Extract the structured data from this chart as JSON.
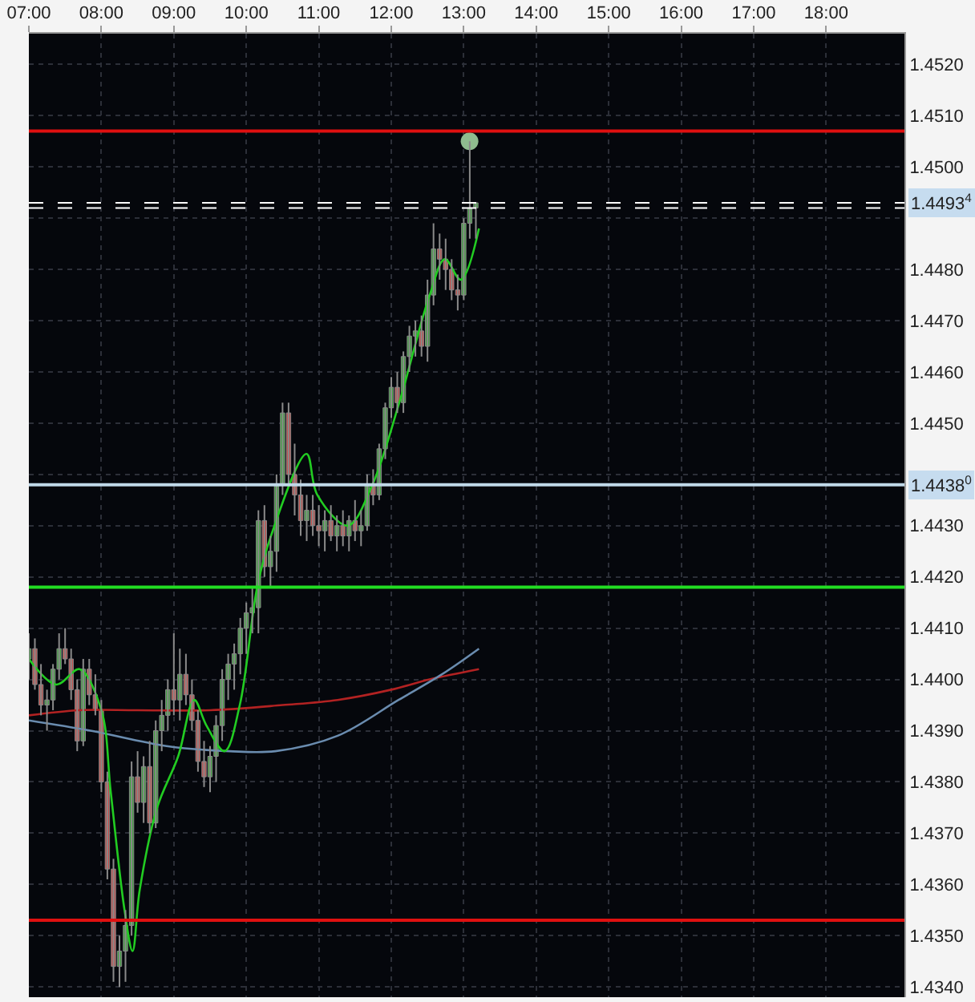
{
  "chart_data": {
    "type": "candlestick",
    "x": [
      7,
      7.083,
      7.167,
      7.25,
      7.333,
      7.417,
      7.5,
      7.583,
      7.667,
      7.75,
      7.833,
      7.917,
      8,
      8.083,
      8.167,
      8.25,
      8.333,
      8.417,
      8.5,
      8.583,
      8.667,
      8.75,
      8.833,
      8.917,
      9,
      9.083,
      9.167,
      9.25,
      9.333,
      9.417,
      9.5,
      9.583,
      9.667,
      9.75,
      9.833,
      9.917,
      10,
      10.083,
      10.167,
      10.25,
      10.333,
      10.417,
      10.5,
      10.583,
      10.667,
      10.75,
      10.833,
      10.917,
      11,
      11.083,
      11.167,
      11.25,
      11.333,
      11.417,
      11.5,
      11.583,
      11.667,
      11.75,
      11.833,
      11.917,
      12,
      12.083,
      12.167,
      12.25,
      12.333,
      12.417,
      12.5,
      12.583,
      12.667,
      12.75,
      12.833,
      12.917,
      13,
      13.083,
      13.167
    ],
    "ohlc": [
      [
        1.4404,
        1.4409,
        1.44,
        1.4406
      ],
      [
        1.4406,
        1.4408,
        1.4398,
        1.4399
      ],
      [
        1.4399,
        1.4403,
        1.4393,
        1.4395
      ],
      [
        1.4395,
        1.4398,
        1.439,
        1.4396
      ],
      [
        1.4396,
        1.4403,
        1.4394,
        1.4402
      ],
      [
        1.4402,
        1.4409,
        1.44,
        1.4406
      ],
      [
        1.4406,
        1.441,
        1.4403,
        1.4404
      ],
      [
        1.4404,
        1.4406,
        1.4396,
        1.4398
      ],
      [
        1.4398,
        1.44,
        1.4386,
        1.4388
      ],
      [
        1.4388,
        1.4404,
        1.4387,
        1.4402
      ],
      [
        1.4402,
        1.4404,
        1.4395,
        1.4397
      ],
      [
        1.4397,
        1.4401,
        1.4393,
        1.4394
      ],
      [
        1.4394,
        1.4396,
        1.4378,
        1.438
      ],
      [
        1.438,
        1.4382,
        1.4361,
        1.4363
      ],
      [
        1.4363,
        1.4365,
        1.4341,
        1.4344
      ],
      [
        1.4344,
        1.435,
        1.434,
        1.4347
      ],
      [
        1.4347,
        1.4355,
        1.4341,
        1.4352
      ],
      [
        1.4352,
        1.4384,
        1.435,
        1.4381
      ],
      [
        1.4381,
        1.4386,
        1.4374,
        1.4376
      ],
      [
        1.4376,
        1.4385,
        1.4372,
        1.4383
      ],
      [
        1.4383,
        1.4388,
        1.437,
        1.4372
      ],
      [
        1.4372,
        1.4392,
        1.4371,
        1.439
      ],
      [
        1.439,
        1.4396,
        1.4386,
        1.4393
      ],
      [
        1.4393,
        1.44,
        1.439,
        1.4398
      ],
      [
        1.4398,
        1.4409,
        1.4393,
        1.4396
      ],
      [
        1.4396,
        1.4406,
        1.4392,
        1.4401
      ],
      [
        1.4401,
        1.4405,
        1.4395,
        1.4397
      ],
      [
        1.4397,
        1.44,
        1.439,
        1.4392
      ],
      [
        1.4392,
        1.4394,
        1.4382,
        1.4384
      ],
      [
        1.4384,
        1.4388,
        1.4379,
        1.4381
      ],
      [
        1.4381,
        1.4387,
        1.4378,
        1.4385
      ],
      [
        1.4385,
        1.4393,
        1.438,
        1.4391
      ],
      [
        1.4391,
        1.4402,
        1.4388,
        1.44
      ],
      [
        1.44,
        1.4405,
        1.4396,
        1.4403
      ],
      [
        1.4403,
        1.4407,
        1.4398,
        1.4405
      ],
      [
        1.4405,
        1.4412,
        1.4401,
        1.441
      ],
      [
        1.441,
        1.4415,
        1.4405,
        1.4413
      ],
      [
        1.4413,
        1.4418,
        1.4409,
        1.4414
      ],
      [
        1.4414,
        1.4433,
        1.4409,
        1.4431
      ],
      [
        1.4431,
        1.4434,
        1.442,
        1.4422
      ],
      [
        1.4422,
        1.4428,
        1.4418,
        1.4425
      ],
      [
        1.4425,
        1.444,
        1.4421,
        1.4438
      ],
      [
        1.4438,
        1.4454,
        1.4436,
        1.4452
      ],
      [
        1.4452,
        1.4454,
        1.4438,
        1.444
      ],
      [
        1.444,
        1.4446,
        1.4432,
        1.4436
      ],
      [
        1.4436,
        1.4439,
        1.4428,
        1.4431
      ],
      [
        1.4431,
        1.4436,
        1.4427,
        1.4433
      ],
      [
        1.4433,
        1.4436,
        1.4428,
        1.443
      ],
      [
        1.443,
        1.4434,
        1.4426,
        1.4429
      ],
      [
        1.4429,
        1.4433,
        1.4425,
        1.4431
      ],
      [
        1.4431,
        1.4434,
        1.4427,
        1.4428
      ],
      [
        1.4428,
        1.4432,
        1.4425,
        1.443
      ],
      [
        1.443,
        1.4433,
        1.4426,
        1.4428
      ],
      [
        1.4428,
        1.4432,
        1.4425,
        1.4431
      ],
      [
        1.4431,
        1.4435,
        1.4427,
        1.4429
      ],
      [
        1.4429,
        1.4433,
        1.4426,
        1.443
      ],
      [
        1.443,
        1.444,
        1.4429,
        1.4438
      ],
      [
        1.4438,
        1.4441,
        1.4434,
        1.4436
      ],
      [
        1.4436,
        1.4446,
        1.4435,
        1.4445
      ],
      [
        1.4445,
        1.4454,
        1.4443,
        1.4453
      ],
      [
        1.4453,
        1.4459,
        1.4451,
        1.4457
      ],
      [
        1.4457,
        1.446,
        1.4452,
        1.4454
      ],
      [
        1.4454,
        1.4464,
        1.4452,
        1.4463
      ],
      [
        1.4463,
        1.4469,
        1.446,
        1.4467
      ],
      [
        1.4467,
        1.447,
        1.4463,
        1.4468
      ],
      [
        1.4468,
        1.4471,
        1.4463,
        1.4465
      ],
      [
        1.4465,
        1.4478,
        1.4462,
        1.4475
      ],
      [
        1.4475,
        1.4489,
        1.4473,
        1.4484
      ],
      [
        1.4484,
        1.4487,
        1.4478,
        1.4482
      ],
      [
        1.4482,
        1.4486,
        1.4476,
        1.448
      ],
      [
        1.448,
        1.4482,
        1.4474,
        1.4476
      ],
      [
        1.4476,
        1.4479,
        1.4472,
        1.4475
      ],
      [
        1.4475,
        1.449,
        1.4474,
        1.4489
      ],
      [
        1.4489,
        1.4505,
        1.4486,
        1.4492
      ],
      [
        1.4492,
        1.4493,
        1.4486,
        1.4493
      ]
    ],
    "colors": [
      "#3f9f3f",
      "#c0504d",
      "#c0504d",
      "#3f9f3f",
      "#3f9f3f",
      "#3f9f3f",
      "#c0504d",
      "#c0504d",
      "#c0504d",
      "#3f9f3f",
      "#c0504d",
      "#c0504d",
      "#c0504d",
      "#c0504d",
      "#c0504d",
      "#3f9f3f",
      "#3f9f3f",
      "#3f9f3f",
      "#c0504d",
      "#3f9f3f",
      "#c0504d",
      "#3f9f3f",
      "#3f9f3f",
      "#3f9f3f",
      "#c0504d",
      "#3f9f3f",
      "#c0504d",
      "#c0504d",
      "#c0504d",
      "#c0504d",
      "#3f9f3f",
      "#3f9f3f",
      "#3f9f3f",
      "#3f9f3f",
      "#3f9f3f",
      "#3f9f3f",
      "#3f9f3f",
      "#3f9f3f",
      "#3f9f3f",
      "#c0504d",
      "#3f9f3f",
      "#3f9f3f",
      "#3f9f3f",
      "#c0504d",
      "#c0504d",
      "#c0504d",
      "#3f9f3f",
      "#c0504d",
      "#c0504d",
      "#3f9f3f",
      "#c0504d",
      "#3f9f3f",
      "#c0504d",
      "#3f9f3f",
      "#c0504d",
      "#3f9f3f",
      "#3f9f3f",
      "#c0504d",
      "#3f9f3f",
      "#3f9f3f",
      "#3f9f3f",
      "#c0504d",
      "#3f9f3f",
      "#3f9f3f",
      "#3f9f3f",
      "#c0504d",
      "#3f9f3f",
      "#3f9f3f",
      "#c0504d",
      "#c0504d",
      "#c0504d",
      "#c0504d",
      "#3f9f3f",
      "#3f9f3f",
      "#3f9f3f"
    ],
    "series": [
      {
        "type": "line",
        "color": "#b22222",
        "x": [
          7,
          7.7,
          8.5,
          9.5,
          10.5,
          11.26,
          12,
          12.53,
          13.21
        ],
        "values": [
          1.4393,
          1.4394,
          1.4394,
          1.4394,
          1.4395,
          1.4396,
          1.4398,
          1.44,
          1.4402
        ]
      },
      {
        "type": "line",
        "color": "#6a8caf",
        "x": [
          7,
          7.85,
          8.9,
          9.77,
          10.4,
          11.26,
          12.1,
          12.7,
          13.21
        ],
        "values": [
          1.4392,
          1.439,
          1.4387,
          1.4386,
          1.4386,
          1.4389,
          1.4396,
          1.4401,
          1.4406
        ]
      },
      {
        "type": "line",
        "color": "#22cc22",
        "x": [
          7,
          7.38,
          7.7,
          8,
          8.13,
          8.32,
          8.43,
          8.53,
          8.77,
          9.06,
          9.28,
          9.45,
          9.7,
          9.91,
          10.15,
          10.34,
          10.83,
          10.98,
          11.4,
          11.74,
          12.11,
          12.53,
          12.74,
          12.96,
          13.21
        ],
        "values": [
          1.4404,
          1.4399,
          1.4402,
          1.4394,
          1.4378,
          1.4355,
          1.4347,
          1.4359,
          1.4375,
          1.4385,
          1.4396,
          1.4391,
          1.4386,
          1.4395,
          1.4418,
          1.4428,
          1.4444,
          1.4436,
          1.443,
          1.4438,
          1.4454,
          1.4475,
          1.4482,
          1.4478,
          1.4488
        ]
      },
      {
        "type": "scatter",
        "color": "#8fbc8f",
        "marker": "circle",
        "x": [
          13.08
        ],
        "values": [
          1.4505
        ]
      }
    ],
    "xlim": [
      7,
      19.08
    ],
    "xticks": [
      {
        "value": 7,
        "label": "07:00"
      },
      {
        "value": 8,
        "label": "08:00"
      },
      {
        "value": 9,
        "label": "09:00"
      },
      {
        "value": 10,
        "label": "10:00"
      },
      {
        "value": 11,
        "label": "11:00"
      },
      {
        "value": 12,
        "label": "12:00"
      },
      {
        "value": 13,
        "label": "13:00"
      },
      {
        "value": 14,
        "label": "14:00"
      },
      {
        "value": 15,
        "label": "15:00"
      },
      {
        "value": 16,
        "label": "16:00"
      },
      {
        "value": 17,
        "label": "17:00"
      },
      {
        "value": 18,
        "label": "18:00"
      }
    ],
    "ylim": [
      1.4338,
      1.4526
    ],
    "yticks": [
      {
        "value": 1.434,
        "label": "1.4340"
      },
      {
        "value": 1.435,
        "label": "1.4350"
      },
      {
        "value": 1.436,
        "label": "1.4360"
      },
      {
        "value": 1.437,
        "label": "1.4370"
      },
      {
        "value": 1.438,
        "label": "1.4380"
      },
      {
        "value": 1.439,
        "label": "1.4390"
      },
      {
        "value": 1.44,
        "label": "1.4400"
      },
      {
        "value": 1.441,
        "label": "1.4410"
      },
      {
        "value": 1.442,
        "label": "1.4420"
      },
      {
        "value": 1.443,
        "label": "1.4430"
      },
      {
        "value": 1.444,
        "label": null
      },
      {
        "value": 1.445,
        "label": "1.4450"
      },
      {
        "value": 1.446,
        "label": "1.4460"
      },
      {
        "value": 1.447,
        "label": "1.4470"
      },
      {
        "value": 1.448,
        "label": "1.4480"
      },
      {
        "value": 1.449,
        "label": null
      },
      {
        "value": 1.45,
        "label": "1.4500"
      },
      {
        "value": 1.451,
        "label": "1.4510"
      },
      {
        "value": 1.452,
        "label": "1.4520"
      }
    ],
    "ref_lines": [
      {
        "axis": "y",
        "value": 1.4507,
        "color": "#e01010"
      },
      {
        "axis": "y",
        "value": 1.4493,
        "color": "#ffffff",
        "line_style": "dashed",
        "label": "1.4493$^{4}$"
      },
      {
        "axis": "y",
        "value": 1.4492,
        "color": "#ffffff",
        "line_style": "dashed"
      },
      {
        "axis": "y",
        "value": 1.4438,
        "color": "#c0d8e8",
        "label": "1.4438$^{0}$"
      },
      {
        "axis": "y",
        "value": 1.4418,
        "color": "#22dd22"
      },
      {
        "axis": "y",
        "value": 1.4353,
        "color": "#e01010"
      }
    ],
    "grid": true
  }
}
